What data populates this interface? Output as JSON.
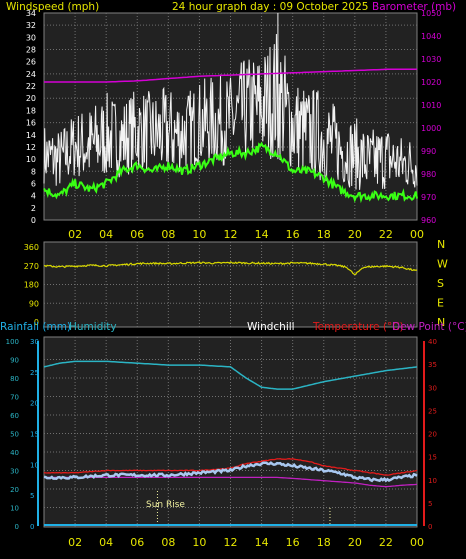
{
  "header": {
    "wind_label": "Windspeed (mph)",
    "title": "24 hour graph day : 09 October 2025",
    "baro_label": "Barometer (mb)"
  },
  "colors": {
    "background": "#000000",
    "plot_bg": "#222222",
    "grid": "#707070",
    "axis_text": "#e6e600",
    "wind": "#f2f2f2",
    "avg_wind": "#39ff14",
    "barometer": "#d400d4",
    "direction": "#d8d800",
    "humidity": "#2bb4c4",
    "rain_axis": "#1fb0e6",
    "temperature": "#e21b1b",
    "dewpoint": "#c020c0",
    "windchill": "#a9c8f0",
    "sun": "#f0f0a0"
  },
  "compass": [
    "N",
    "W",
    "S",
    "E",
    "N"
  ],
  "sun_rise_label": "Sun Rise",
  "chart_data": [
    {
      "type": "line",
      "title": "24 hour graph day : 09 October 2025",
      "x_ticks": [
        "02",
        "04",
        "06",
        "08",
        "10",
        "12",
        "14",
        "16",
        "18",
        "20",
        "22",
        "00"
      ],
      "xlim": [
        0,
        24
      ],
      "grid": true,
      "left_axis": {
        "label": "Windspeed (mph)",
        "lim": [
          0,
          34
        ],
        "ticks": [
          0,
          2,
          4,
          6,
          8,
          10,
          12,
          14,
          16,
          18,
          20,
          22,
          24,
          26,
          28,
          30,
          32,
          34
        ]
      },
      "right_axis": {
        "label": "Barometer (mb)",
        "lim": [
          960,
          1050
        ],
        "ticks": [
          960,
          970,
          980,
          990,
          1000,
          1010,
          1020,
          1030,
          1040,
          1050
        ]
      },
      "series": [
        {
          "name": "Windspeed (mph)",
          "axis": "left",
          "hours": [
            0,
            1,
            2,
            3,
            4,
            5,
            6,
            7,
            8,
            9,
            10,
            11,
            12,
            13,
            14,
            15,
            16,
            17,
            18,
            19,
            20,
            21,
            22,
            23,
            24
          ],
          "low": [
            6,
            5,
            7,
            6,
            7,
            7,
            8,
            8,
            7,
            8,
            9,
            9,
            9,
            10,
            10,
            10,
            8,
            7,
            6,
            6,
            5,
            4,
            5,
            5,
            5
          ],
          "high": [
            16,
            15,
            18,
            19,
            21,
            20,
            22,
            21,
            22,
            21,
            23,
            24,
            24,
            27,
            28,
            32,
            24,
            22,
            22,
            18,
            17,
            15,
            16,
            14,
            14
          ]
        },
        {
          "name": "Average wind",
          "axis": "left",
          "hours": [
            0,
            1,
            2,
            3,
            4,
            5,
            6,
            7,
            8,
            9,
            10,
            11,
            12,
            13,
            14,
            15,
            16,
            17,
            18,
            19,
            20,
            21,
            22,
            23,
            24
          ],
          "values": [
            5,
            4,
            6,
            5,
            6,
            8,
            9,
            8,
            9,
            8,
            9,
            10,
            11,
            11,
            12,
            11,
            8,
            8,
            7,
            5,
            4,
            4,
            4,
            4,
            4
          ]
        },
        {
          "name": "Barometer (mb)",
          "axis": "right",
          "hours": [
            0,
            2,
            4,
            6,
            8,
            10,
            12,
            14,
            16,
            18,
            20,
            22,
            24
          ],
          "values": [
            1020,
            1020,
            1020,
            1020.5,
            1021.5,
            1022.5,
            1023,
            1023.5,
            1024,
            1024.5,
            1025,
            1025.5,
            1025.5
          ]
        }
      ]
    },
    {
      "type": "line",
      "x_ticks": [
        "02",
        "04",
        "06",
        "08",
        "10",
        "12",
        "14",
        "16",
        "18",
        "20",
        "22",
        "00"
      ],
      "xlim": [
        0,
        24
      ],
      "grid": true,
      "y_axis": {
        "lim": [
          0,
          360
        ],
        "ticks": [
          0,
          90,
          180,
          270,
          360
        ]
      },
      "series": [
        {
          "name": "Wind direction",
          "hours": [
            0,
            1,
            2,
            3,
            4,
            5,
            6,
            7,
            8,
            9,
            10,
            11,
            12,
            13,
            14,
            15,
            16,
            17,
            18,
            19,
            19.5,
            20,
            20.5,
            21,
            22,
            23,
            24
          ],
          "values": [
            270,
            265,
            268,
            272,
            270,
            275,
            280,
            282,
            280,
            283,
            285,
            282,
            285,
            283,
            282,
            280,
            283,
            282,
            278,
            270,
            262,
            225,
            262,
            265,
            268,
            262,
            245
          ]
        }
      ]
    },
    {
      "type": "line",
      "x_ticks": [
        "02",
        "04",
        "06",
        "08",
        "10",
        "12",
        "14",
        "16",
        "18",
        "20",
        "22",
        "00"
      ],
      "xlim": [
        0,
        24
      ],
      "grid": true,
      "axes": [
        {
          "label": "Rainfall (mm)",
          "lim": [
            0,
            30
          ],
          "ticks": [
            0,
            5,
            10,
            15,
            20,
            25,
            30
          ]
        },
        {
          "label": "Humidity",
          "lim": [
            0,
            100
          ],
          "ticks": [
            0,
            10,
            20,
            30,
            40,
            50,
            60,
            70,
            80,
            90,
            100
          ]
        },
        {
          "label": "Windchill"
        },
        {
          "label": "Temperature (°C)",
          "lim": [
            0,
            40
          ],
          "ticks": [
            0,
            5,
            10,
            15,
            20,
            25,
            30,
            35,
            40
          ]
        },
        {
          "label": "Dew Point (°C)"
        }
      ],
      "series": [
        {
          "name": "Humidity",
          "axis": "Humidity",
          "hours": [
            0,
            1,
            2,
            4,
            6,
            8,
            10,
            12,
            13,
            14,
            15,
            16,
            17,
            18,
            20,
            22,
            24
          ],
          "values": [
            86,
            88,
            89,
            89,
            88,
            87,
            87,
            86,
            80,
            75,
            74,
            74,
            76,
            78,
            81,
            84,
            86
          ]
        },
        {
          "name": "Temperature (°C)",
          "axis": "Temperature (°C)",
          "hours": [
            0,
            2,
            4,
            6,
            8,
            10,
            12,
            13,
            14,
            15,
            16,
            17,
            18,
            19,
            20,
            21,
            22,
            23,
            24
          ],
          "values": [
            11.5,
            11.5,
            12,
            12,
            12,
            12,
            12.5,
            13.5,
            14,
            14.5,
            14.5,
            14,
            13,
            12.5,
            12,
            11.5,
            11,
            11.5,
            12
          ]
        },
        {
          "name": "Windchill",
          "axis": "Temperature (°C)",
          "hours": [
            0,
            2,
            4,
            6,
            8,
            10,
            12,
            13,
            14,
            15,
            16,
            17,
            18,
            19,
            20,
            21,
            22,
            23,
            24
          ],
          "values": [
            10.5,
            10.5,
            11,
            11,
            11,
            11.5,
            12,
            13,
            13.5,
            13.5,
            13,
            12.5,
            12,
            11.5,
            10.5,
            10,
            10,
            10.5,
            11
          ]
        },
        {
          "name": "Dew Point (°C)",
          "axis": "Temperature (°C)",
          "hours": [
            0,
            2,
            4,
            6,
            8,
            10,
            12,
            14,
            15,
            16,
            18,
            20,
            21,
            22,
            23,
            24
          ],
          "values": [
            10.5,
            10.5,
            10.5,
            10.5,
            10.5,
            10.5,
            10.5,
            10.5,
            10.5,
            10.3,
            9.8,
            9.3,
            8.8,
            8.5,
            8.8,
            9
          ]
        },
        {
          "name": "Rainfall (mm)",
          "axis": "Rainfall (mm)",
          "hours": [
            0,
            24
          ],
          "values": [
            0,
            0
          ]
        }
      ],
      "sun_rise_hour": 7.3,
      "sun_set_hour": 18.4
    }
  ]
}
